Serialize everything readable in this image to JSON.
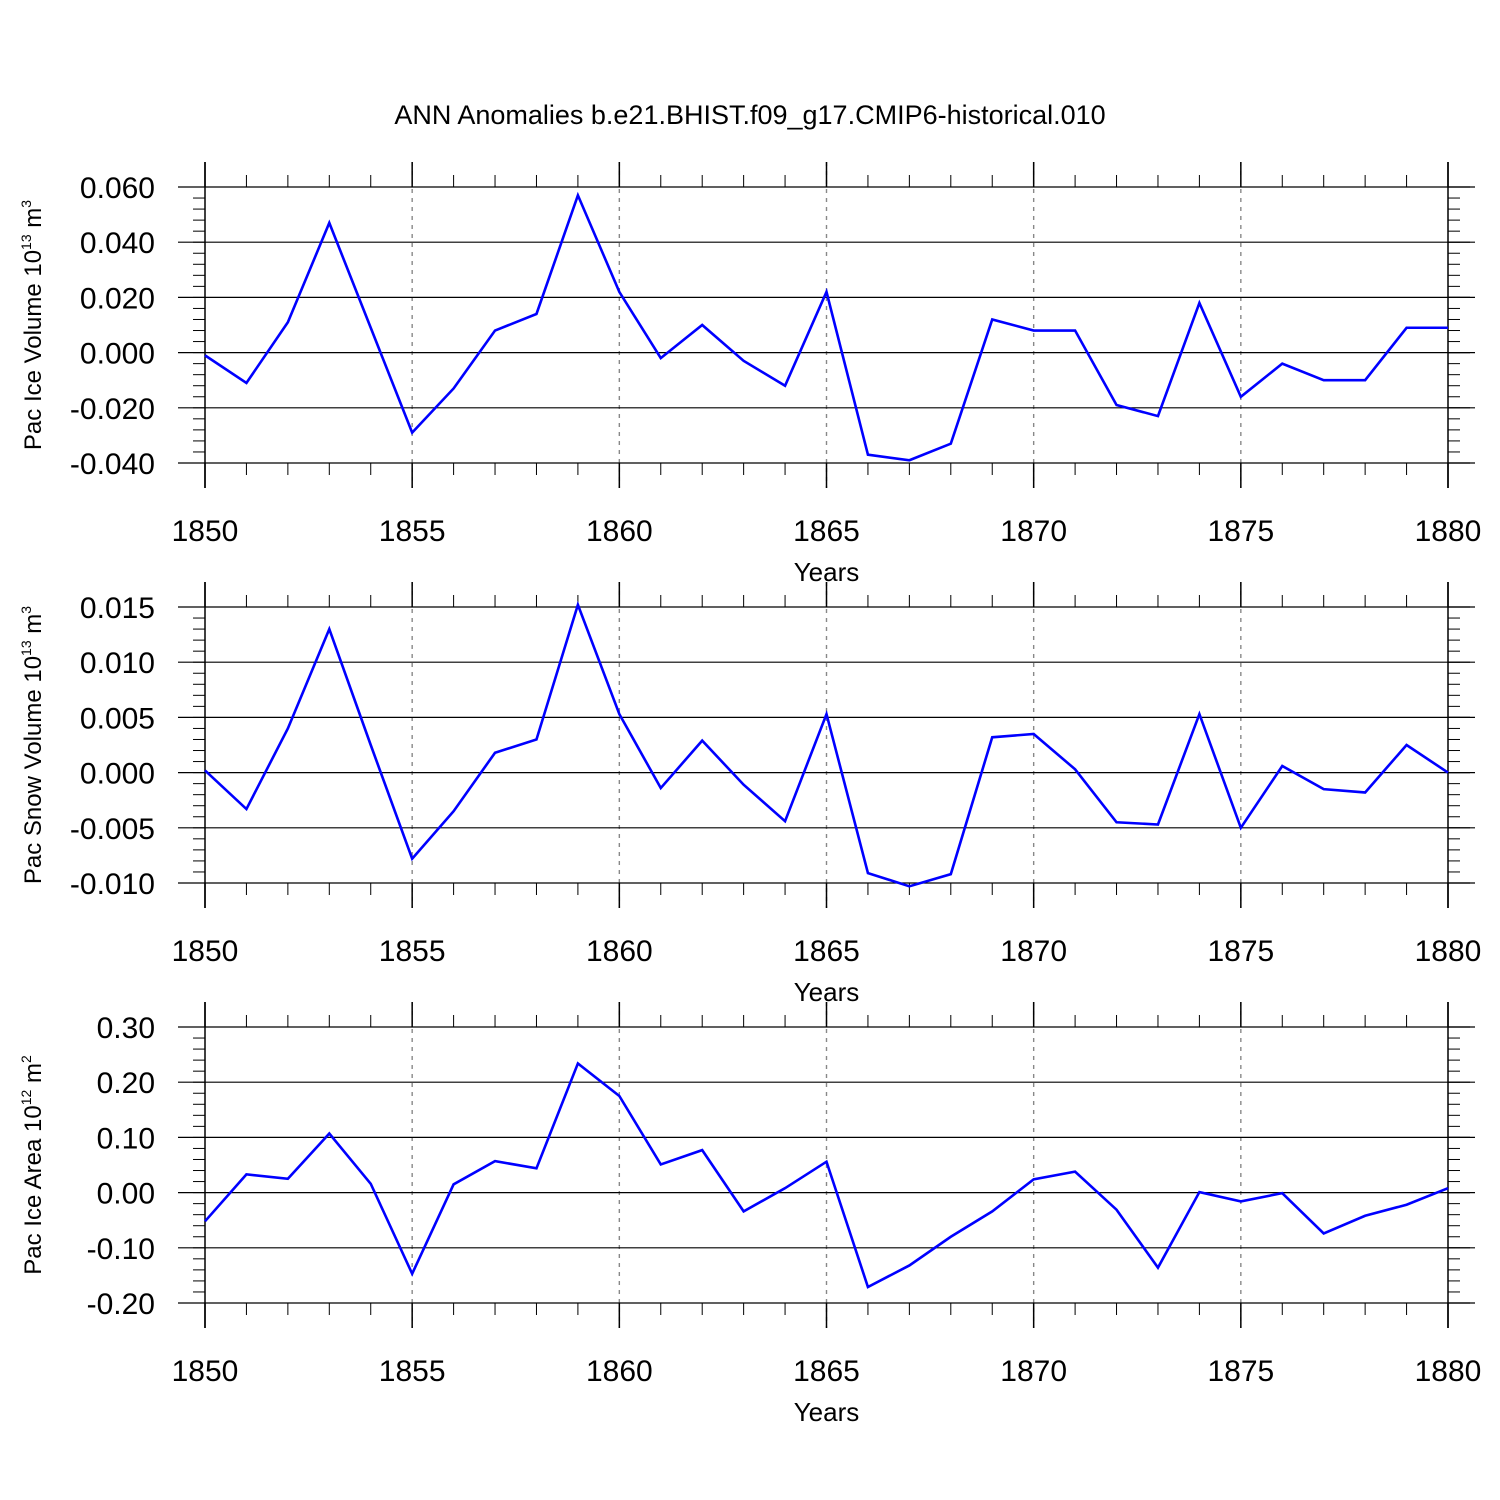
{
  "figure": {
    "title": "ANN Anomalies b.e21.BHIST.f09_g17.CMIP6-historical.010",
    "line_color": "#0000ff"
  },
  "chart_data": [
    {
      "type": "line",
      "title": "",
      "xlabel": "Years",
      "ylabel": {
        "base": "Pac Ice Volume 10",
        "exp1": "13",
        "mid": " m",
        "exp2": "3"
      },
      "xlim": [
        1850,
        1880
      ],
      "ylim": [
        -0.04,
        0.06
      ],
      "xticks": [
        1850,
        1855,
        1860,
        1865,
        1870,
        1875,
        1880
      ],
      "xtick_labels": [
        "1850",
        "1855",
        "1860",
        "1865",
        "1870",
        "1875",
        "1880"
      ],
      "yticks": [
        0.06,
        0.04,
        0.02,
        0.0,
        -0.02,
        -0.04
      ],
      "ytick_labels": [
        "0.060",
        "0.040",
        "0.020",
        "0.000",
        "-0.020",
        "-0.040"
      ],
      "grid": "dashed vertical lines at major x ticks",
      "series": [
        {
          "color": "#0000ff",
          "x": [
            1850,
            1851,
            1852,
            1853,
            1854,
            1855,
            1856,
            1857,
            1858,
            1859,
            1860,
            1861,
            1862,
            1863,
            1864,
            1865,
            1866,
            1867,
            1868,
            1869,
            1870,
            1871,
            1872,
            1873,
            1874,
            1875,
            1876,
            1877,
            1878,
            1879,
            1880
          ],
          "values": [
            -0.001,
            -0.011,
            0.011,
            0.047,
            0.009,
            -0.029,
            -0.013,
            0.008,
            0.014,
            0.057,
            0.022,
            -0.002,
            0.01,
            -0.003,
            -0.012,
            0.022,
            -0.037,
            -0.039,
            -0.033,
            0.012,
            0.008,
            0.008,
            -0.019,
            -0.023,
            0.018,
            -0.016,
            -0.004,
            -0.01,
            -0.01,
            0.009,
            0.009
          ]
        }
      ]
    },
    {
      "type": "line",
      "title": "",
      "xlabel": "Years",
      "ylabel": {
        "base": "Pac Snow Volume 10",
        "exp1": "13",
        "mid": " m",
        "exp2": "3"
      },
      "xlim": [
        1850,
        1880
      ],
      "ylim": [
        -0.012,
        0.016
      ],
      "xticks": [
        1850,
        1855,
        1860,
        1865,
        1870,
        1875,
        1880
      ],
      "xtick_labels": [
        "1850",
        "1855",
        "1860",
        "1865",
        "1870",
        "1875",
        "1880"
      ],
      "yticks": [
        0.015,
        0.01,
        0.005,
        0.0,
        -0.005,
        -0.01
      ],
      "ytick_labels": [
        "0.015",
        "0.010",
        "0.005",
        "0.000",
        "-0.005",
        "-0.010"
      ],
      "grid": "dashed vertical lines at major x ticks",
      "series": [
        {
          "color": "#0000ff",
          "x": [
            1850,
            1851,
            1852,
            1853,
            1854,
            1855,
            1856,
            1857,
            1858,
            1859,
            1860,
            1861,
            1862,
            1863,
            1864,
            1865,
            1866,
            1867,
            1868,
            1869,
            1870,
            1871,
            1872,
            1873,
            1874,
            1875,
            1876,
            1877,
            1878,
            1879,
            1880
          ],
          "values": [
            0.0002,
            -0.0033,
            0.004,
            0.013,
            0.0025,
            -0.0078,
            -0.0035,
            0.0018,
            0.003,
            0.0152,
            0.0053,
            -0.0014,
            0.0029,
            -0.0011,
            -0.0044,
            0.0053,
            -0.0091,
            -0.0103,
            -0.0092,
            0.0032,
            0.0035,
            0.0003,
            -0.0045,
            -0.0047,
            0.0053,
            -0.005,
            0.0006,
            -0.0015,
            -0.0018,
            0.0025,
            0.0
          ]
        }
      ]
    },
    {
      "type": "line",
      "title": "",
      "xlabel": "Years",
      "ylabel": {
        "base": "Pac Ice Area 10",
        "exp1": "12",
        "mid": " m",
        "exp2": "2"
      },
      "xlim": [
        1850,
        1880
      ],
      "ylim": [
        -0.2,
        0.3
      ],
      "xticks": [
        1850,
        1855,
        1860,
        1865,
        1870,
        1875,
        1880
      ],
      "xtick_labels": [
        "1850",
        "1855",
        "1860",
        "1865",
        "1870",
        "1875",
        "1880"
      ],
      "yticks": [
        0.3,
        0.2,
        0.1,
        0.0,
        -0.1,
        -0.2
      ],
      "ytick_labels": [
        "0.30",
        "0.20",
        "0.10",
        "0.00",
        "-0.10",
        "-0.20"
      ],
      "grid": "dashed vertical lines at major x ticks",
      "series": [
        {
          "color": "#0000ff",
          "x": [
            1850,
            1851,
            1852,
            1853,
            1854,
            1855,
            1856,
            1857,
            1858,
            1859,
            1860,
            1861,
            1862,
            1863,
            1864,
            1865,
            1866,
            1867,
            1868,
            1869,
            1870,
            1871,
            1872,
            1873,
            1874,
            1875,
            1876,
            1877,
            1878,
            1879,
            1880
          ],
          "values": [
            -0.052,
            0.033,
            0.025,
            0.107,
            0.016,
            -0.147,
            0.015,
            0.057,
            0.044,
            0.234,
            0.175,
            0.051,
            0.077,
            -0.034,
            0.008,
            0.056,
            -0.171,
            -0.132,
            -0.08,
            -0.034,
            0.024,
            0.038,
            -0.031,
            -0.136,
            0.001,
            -0.016,
            -0.001,
            -0.074,
            -0.042,
            -0.022,
            0.008
          ]
        }
      ]
    }
  ]
}
